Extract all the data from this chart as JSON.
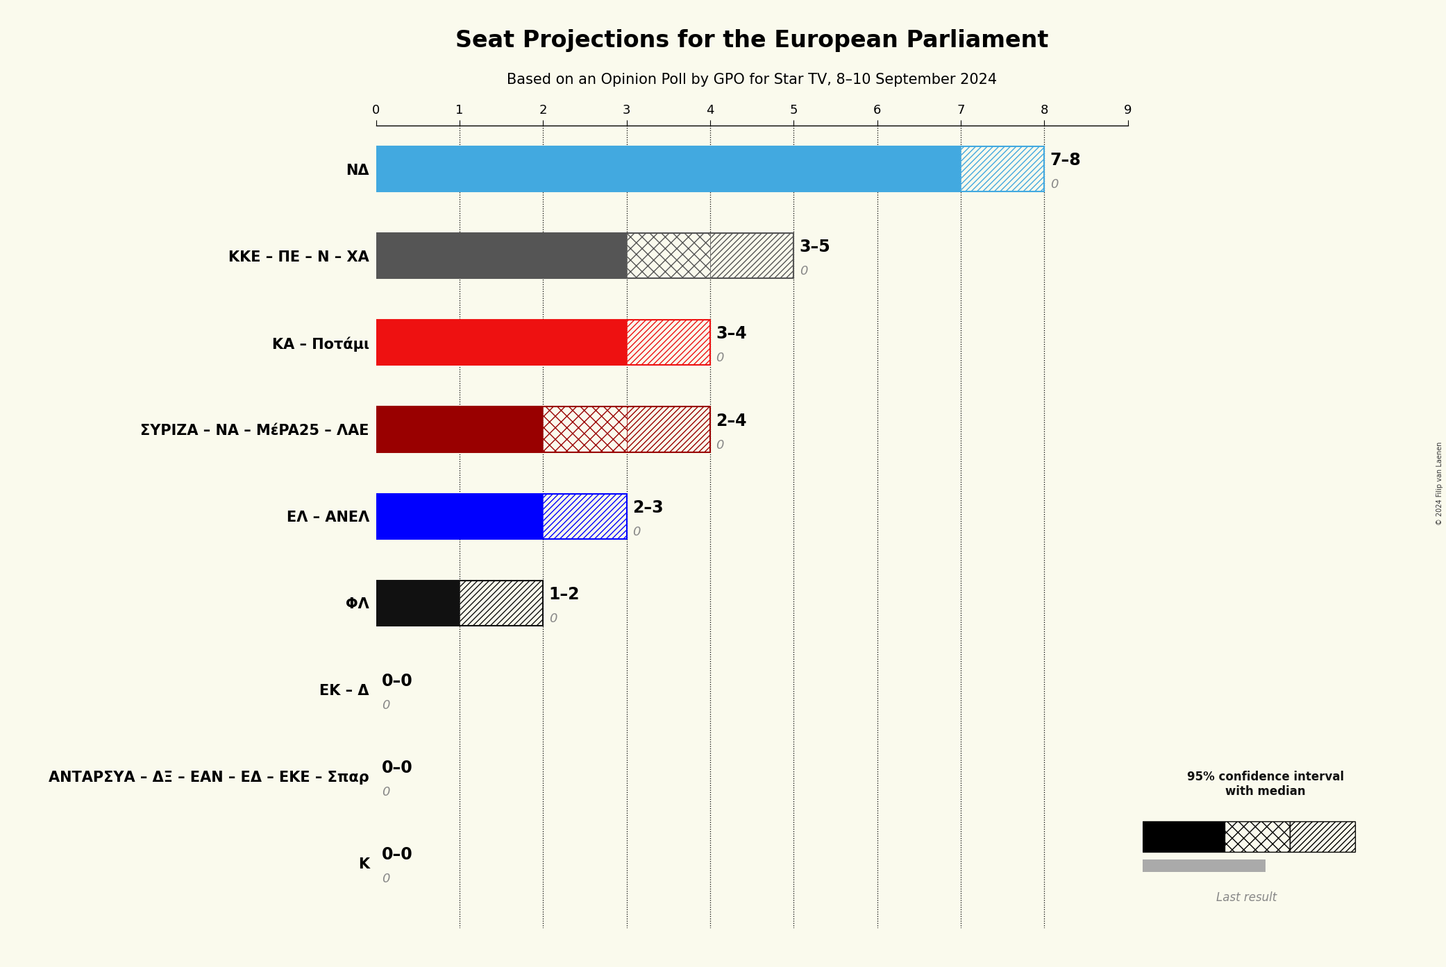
{
  "title": "Seat Projections for the European Parliament",
  "subtitle": "Based on an Opinion Poll by GPO for Star TV, 8–10 September 2024",
  "copyright": "© 2024 Filip van Laenen",
  "background_color": "#fafaed",
  "parties": [
    {
      "name": "NΔ",
      "low": 7,
      "median": 7,
      "high": 8,
      "last": 0,
      "color": "#42a9e0",
      "label": "7–8"
    },
    {
      "name": "ΚΚΕ – ΠΕ – Ν – ΧΑ",
      "low": 3,
      "median": 4,
      "high": 5,
      "last": 0,
      "color": "#555555",
      "label": "3–5"
    },
    {
      "name": "ΚΑ – Ποτάμι",
      "low": 3,
      "median": 3,
      "high": 4,
      "last": 0,
      "color": "#ee1111",
      "label": "3–4"
    },
    {
      "name": "ΣΥΡΙΖΑ – ΝΑ – ΜέPA25 – ΛΑΕ",
      "low": 2,
      "median": 3,
      "high": 4,
      "last": 0,
      "color": "#990000",
      "label": "2–4"
    },
    {
      "name": "ΕΛ – ΑΝΕΛ",
      "low": 2,
      "median": 2,
      "high": 3,
      "last": 0,
      "color": "#0000ff",
      "label": "2–3"
    },
    {
      "name": "ΦΛ",
      "low": 1,
      "median": 1,
      "high": 2,
      "last": 0,
      "color": "#111111",
      "label": "1–2"
    },
    {
      "name": "ΕΚ – Δ",
      "low": 0,
      "median": 0,
      "high": 0,
      "last": 0,
      "color": "#888888",
      "label": "0–0"
    },
    {
      "name": "ΑΝΤΑΡΣΥΑ – ΔΞ – ΕΑΝ – ΕΔ – ΕΚΕ – Σπαρ",
      "low": 0,
      "median": 0,
      "high": 0,
      "last": 0,
      "color": "#888888",
      "label": "0–0"
    },
    {
      "name": "Κ",
      "low": 0,
      "median": 0,
      "high": 0,
      "last": 0,
      "color": "#888888",
      "label": "0–0"
    }
  ],
  "xlim": [
    0,
    9
  ],
  "xticks": [
    0,
    1,
    2,
    3,
    4,
    5,
    6,
    7,
    8,
    9
  ]
}
